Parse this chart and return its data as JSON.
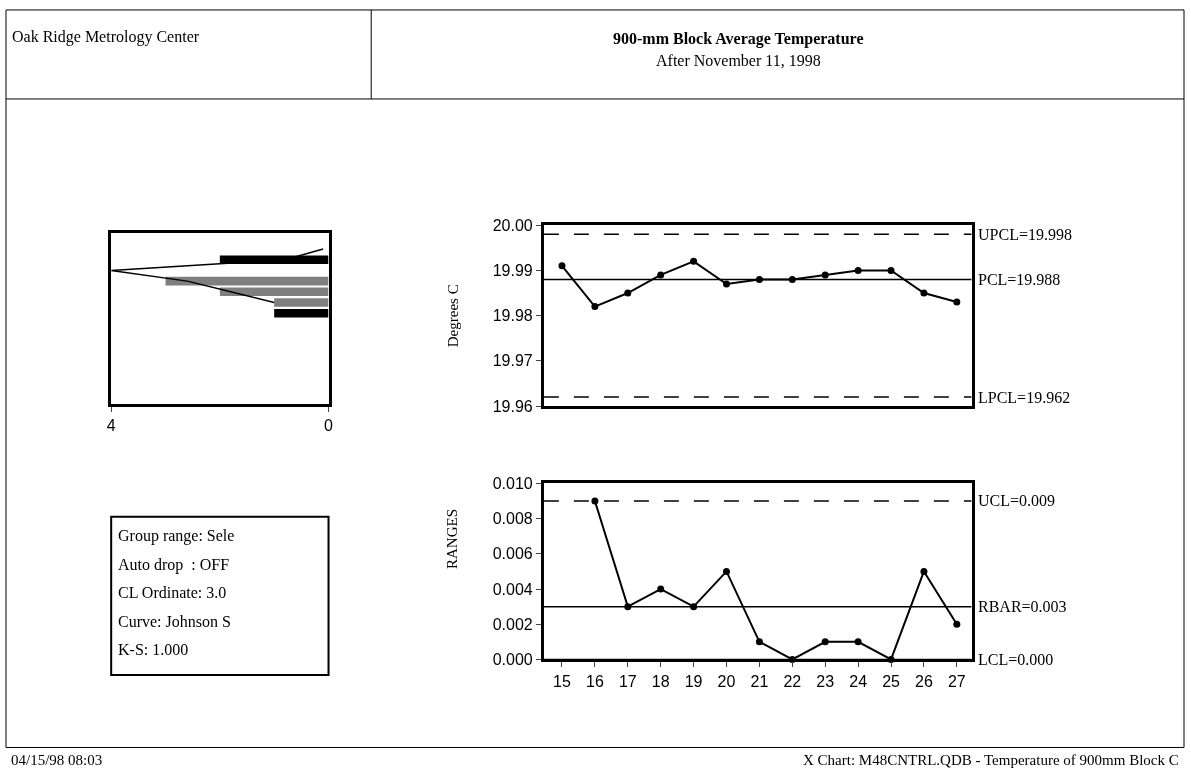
{
  "chart_data": [
    {
      "type": "bar",
      "orientation": "horizontal",
      "categories": [
        null,
        null,
        null,
        null,
        null,
        null,
        null,
        null,
        null,
        null,
        null,
        null,
        null,
        null,
        null,
        null
      ],
      "values": [
        null,
        null,
        2,
        null,
        3,
        2,
        1,
        1,
        null,
        null,
        null,
        null,
        null,
        null,
        null,
        null
      ],
      "colors": [
        "#000000",
        "#000000",
        "#000000",
        "#000000",
        "#7f7f7f",
        "#7f7f7f",
        "#7f7f7f",
        "#000000",
        "#000000",
        "#000000",
        "#000000",
        "#000000",
        "#000000",
        "#000000",
        "#000000",
        "#000000"
      ],
      "series": [
        {
          "type": "line",
          "color": "#000000",
          "values": [
            null,
            0.1,
            0.8,
            4,
            2.6,
            1.8,
            1,
            null,
            null,
            null,
            null,
            null,
            null,
            null,
            null,
            null
          ]
        }
      ],
      "xlim": [
        4,
        0
      ],
      "xticks": [
        4,
        0
      ],
      "tick_labels": "x"
    },
    {
      "type": "line",
      "title": "900-mm Block Average Temperature",
      "subtitle": "After November 11, 1998",
      "ylabel": "Degrees C",
      "x": [
        15,
        16,
        17,
        18,
        19,
        20,
        21,
        22,
        23,
        24,
        25,
        26,
        27
      ],
      "values": [
        19.991,
        19.982,
        19.985,
        19.989,
        19.992,
        19.987,
        19.988,
        19.988,
        19.989,
        19.99,
        19.99,
        19.985,
        19.983
      ],
      "color": "#000000",
      "marker": "circle",
      "line_style": "solid",
      "xlim": [
        14.45,
        27.45
      ],
      "ylim": [
        19.96,
        20.0
      ],
      "yticks": [
        {
          "value": 19.96,
          "label": "19.96"
        },
        {
          "value": 19.97,
          "label": "19.97"
        },
        {
          "value": 19.98,
          "label": "19.98"
        },
        {
          "value": 19.99,
          "label": "19.99"
        },
        {
          "value": 20.0,
          "label": "20.00"
        }
      ],
      "tick_labels": "y",
      "ref_lines": [
        {
          "axis": "y",
          "value": 19.998,
          "label": "UPCL=19.998",
          "line_style": "dashed"
        },
        {
          "axis": "y",
          "value": 19.988,
          "label": "PCL=19.988",
          "line_style": "solid"
        },
        {
          "axis": "y",
          "value": 19.962,
          "label": "LPCL=19.962",
          "line_style": "dashed"
        }
      ]
    },
    {
      "type": "line",
      "ylabel": "RANGES",
      "x": [
        16,
        17,
        18,
        19,
        20,
        21,
        22,
        23,
        24,
        25,
        26,
        27
      ],
      "values": [
        0.009,
        0.003,
        0.004,
        0.003,
        0.005,
        0.001,
        0.0,
        0.001,
        0.001,
        0.0,
        0.005,
        0.002
      ],
      "color": "#000000",
      "marker": "circle",
      "line_style": "solid",
      "xlim": [
        14.45,
        27.45
      ],
      "xticks": [
        15,
        16,
        17,
        18,
        19,
        20,
        21,
        22,
        23,
        24,
        25,
        26,
        27
      ],
      "ylim": [
        0,
        0.01
      ],
      "yticks": [
        {
          "value": 0,
          "label": "0.000"
        },
        {
          "value": 0.002,
          "label": "0.002"
        },
        {
          "value": 0.004,
          "label": "0.004"
        },
        {
          "value": 0.006,
          "label": "0.006"
        },
        {
          "value": 0.008,
          "label": "0.008"
        },
        {
          "value": 0.01,
          "label": "0.010"
        }
      ],
      "ref_lines": [
        {
          "axis": "y",
          "value": 0.009,
          "label": "UCL=0.009",
          "line_style": "dashed"
        },
        {
          "axis": "y",
          "value": 0.003,
          "label": "RBAR=0.003",
          "line_style": "solid"
        },
        {
          "axis": "y",
          "value": 0.0,
          "label": "LCL=0.000",
          "line_style": "solid"
        }
      ],
      "annotations": [
        "04/15/98 08:03",
        "X Chart: M48CNTRL.QDB - Temperature of 900mm Block C"
      ]
    },
    {
      "type": "other",
      "title": "Oak Ridge Metrology Center",
      "annotations": [
        "Group range: Sele",
        "Auto drop  : OFF",
        "CL Ordinate: 3.0",
        "Curve: Johnson S",
        "K-S: 1.000"
      ]
    }
  ]
}
